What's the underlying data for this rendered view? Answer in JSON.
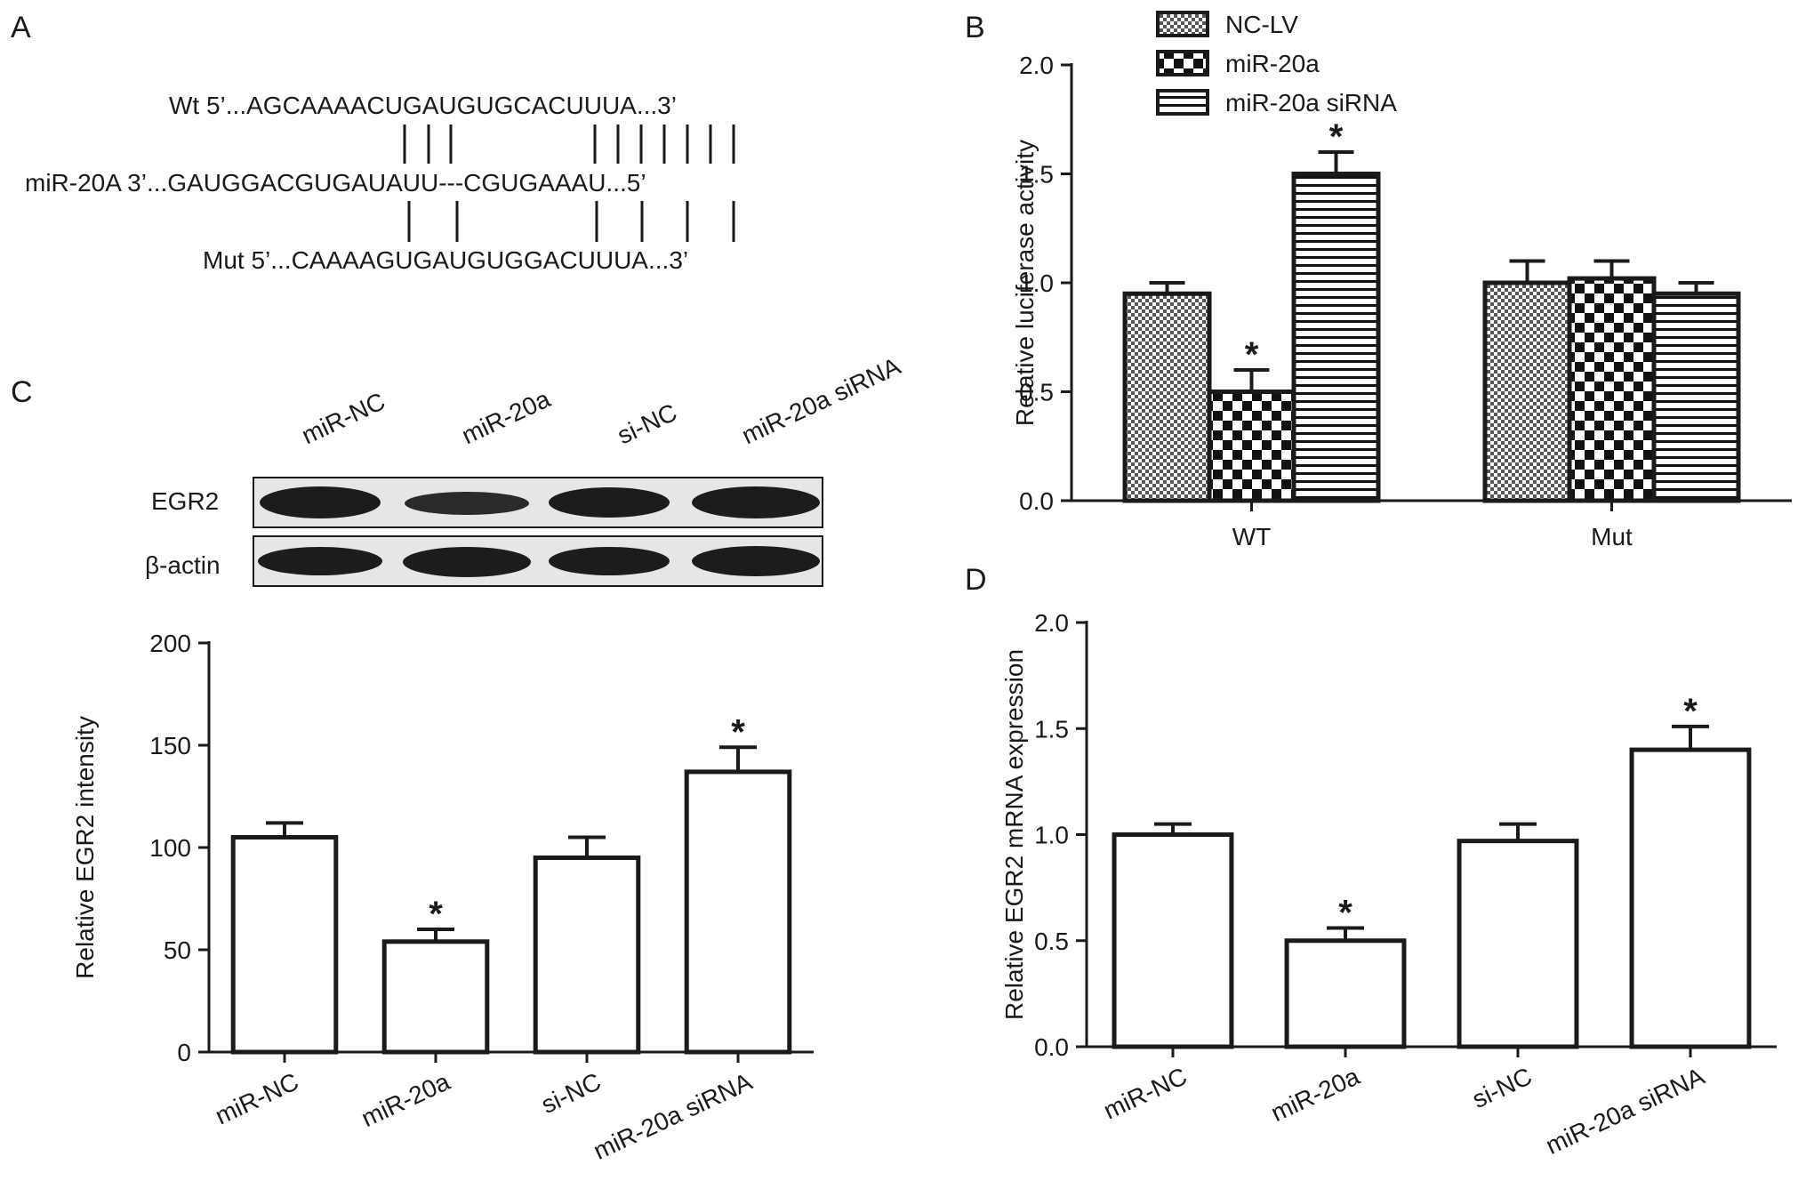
{
  "panels": {
    "A": {
      "letter": "A",
      "wt": "Wt 5’...AGCAAAACUGAUGUGCACUUUA...3’",
      "mir": "miR-20A 3’...GAUGGACGUGAUAUU---CGUGAAAU...5’",
      "mut": "Mut 5’...CAAAAGUGAUGUGGACUUUA...3’"
    },
    "B": {
      "letter": "B"
    },
    "C": {
      "letter": "C",
      "blot_lanes": [
        "miR-NC",
        "miR-20a",
        "si-NC",
        "miR-20a siRNA"
      ],
      "blot_rows": [
        "EGR2",
        "β-actin"
      ]
    },
    "D": {
      "letter": "D"
    }
  },
  "chart_data": [
    {
      "panel": "B",
      "type": "bar",
      "title": "",
      "xlabel": "",
      "ylabel": "Relative luciferase activity",
      "ylim": [
        0,
        2.0
      ],
      "yticks": [
        "0.0",
        "0.5",
        "1.0",
        "1.5",
        "2.0"
      ],
      "categories": [
        "WT",
        "Mut"
      ],
      "series": [
        {
          "name": "NC-LV",
          "pattern": "checker-fine",
          "values": [
            0.95,
            1.0
          ],
          "errors": [
            0.05,
            0.1
          ],
          "significant": [
            false,
            false
          ]
        },
        {
          "name": "miR-20a",
          "pattern": "checker-coarse",
          "values": [
            0.5,
            1.02
          ],
          "errors": [
            0.1,
            0.08
          ],
          "significant": [
            true,
            false
          ]
        },
        {
          "name": "miR-20a siRNA",
          "pattern": "horizontal-lines",
          "values": [
            1.5,
            0.95
          ],
          "errors": [
            0.1,
            0.05
          ],
          "significant": [
            true,
            false
          ]
        }
      ],
      "legend_position": "top-left"
    },
    {
      "panel": "C",
      "type": "bar",
      "title": "",
      "xlabel": "",
      "ylabel": "Relative EGR2 intensity",
      "ylim": [
        0,
        200
      ],
      "yticks": [
        "0",
        "50",
        "100",
        "150",
        "200"
      ],
      "categories": [
        "miR-NC",
        "miR-20a",
        "si-NC",
        "miR-20a siRNA"
      ],
      "values": [
        105,
        54,
        95,
        137
      ],
      "errors": [
        7,
        6,
        10,
        12
      ],
      "significant": [
        false,
        true,
        false,
        true
      ]
    },
    {
      "panel": "D",
      "type": "bar",
      "title": "",
      "xlabel": "",
      "ylabel": "Relative EGR2 mRNA expression",
      "ylim": [
        0,
        2.0
      ],
      "yticks": [
        "0.0",
        "0.5",
        "1.0",
        "1.5",
        "2.0"
      ],
      "categories": [
        "miR-NC",
        "miR-20a",
        "si-NC",
        "miR-20a siRNA"
      ],
      "values": [
        1.0,
        0.5,
        0.97,
        1.4
      ],
      "errors": [
        0.05,
        0.06,
        0.08,
        0.11
      ],
      "significant": [
        false,
        true,
        false,
        true
      ]
    }
  ],
  "star_symbol": "*"
}
